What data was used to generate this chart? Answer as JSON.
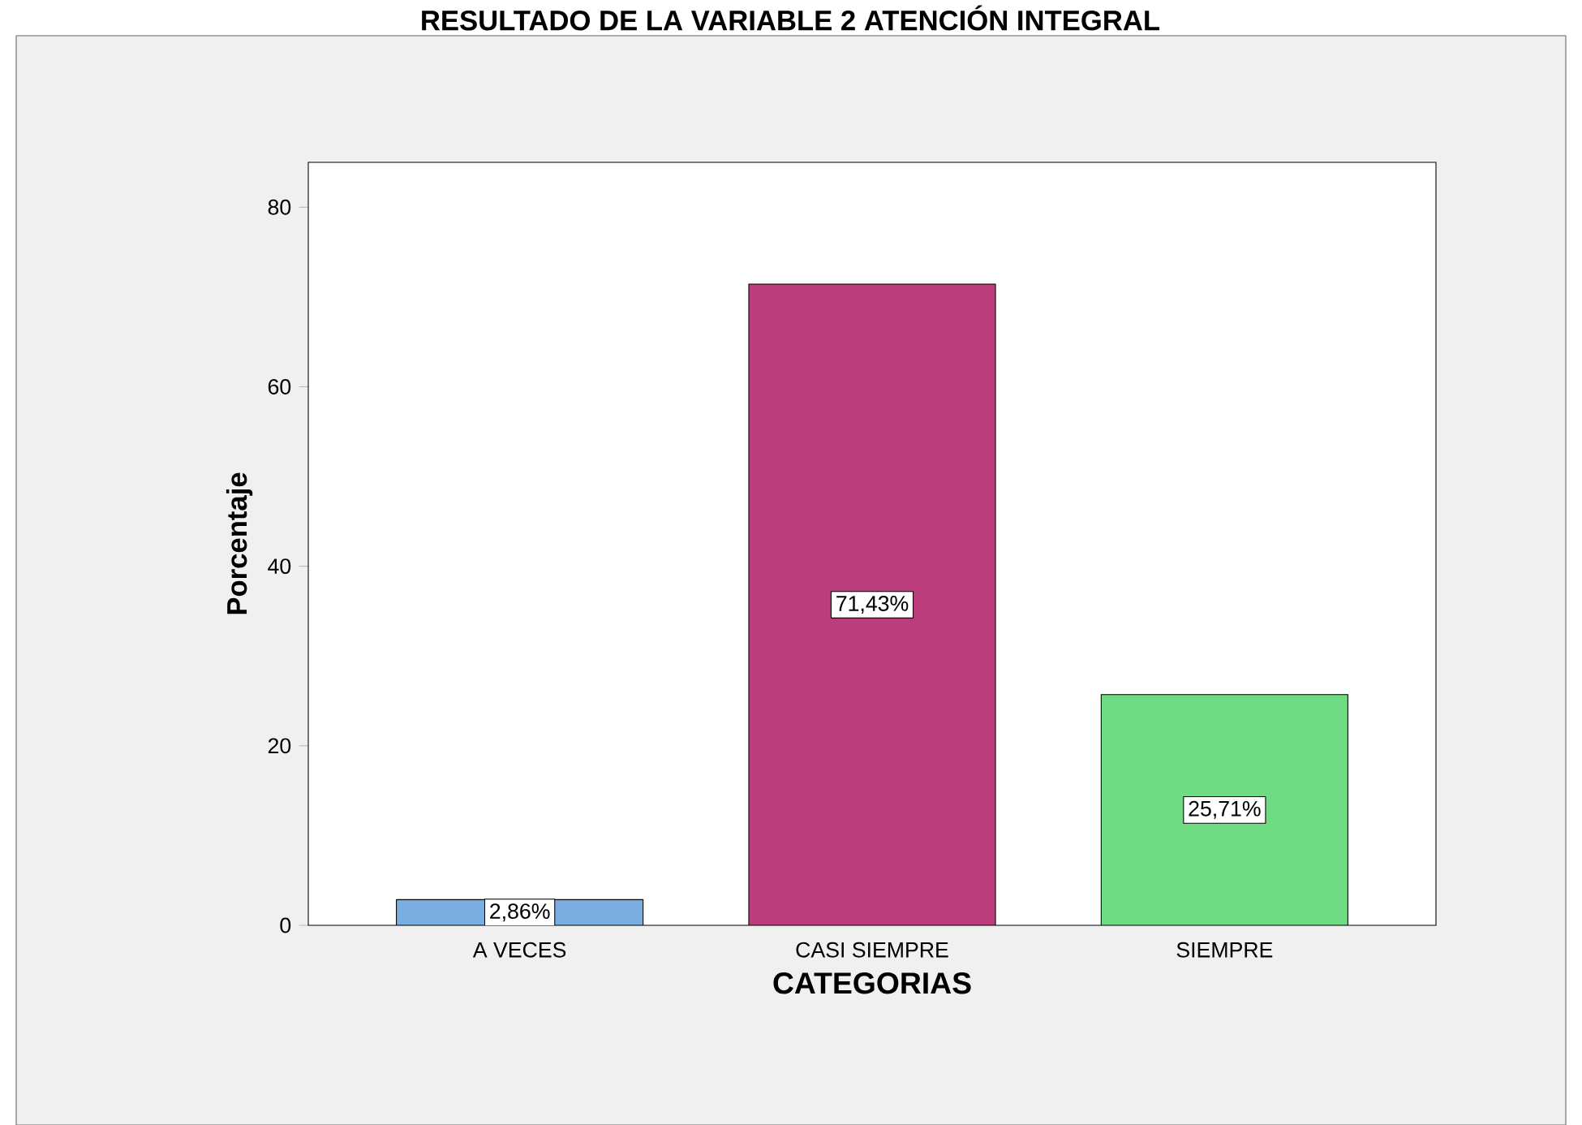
{
  "chart_data": {
    "type": "bar",
    "title": "RESULTADO DE LA VARIABLE 2 ATENCIÓN INTEGRAL",
    "xlabel": "CATEGORIAS",
    "ylabel": "Porcentaje",
    "categories": [
      "A VECES",
      "CASI SIEMPRE",
      "SIEMPRE"
    ],
    "values": [
      2.86,
      71.43,
      25.71
    ],
    "colors": [
      "#7aaee0",
      "#bb3d7c",
      "#6fdc84"
    ],
    "value_labels": [
      "2,86%",
      "71,43%",
      "25,71%"
    ],
    "ylim": [
      0,
      85
    ],
    "yticks": [
      0,
      20,
      40,
      60,
      80
    ]
  }
}
